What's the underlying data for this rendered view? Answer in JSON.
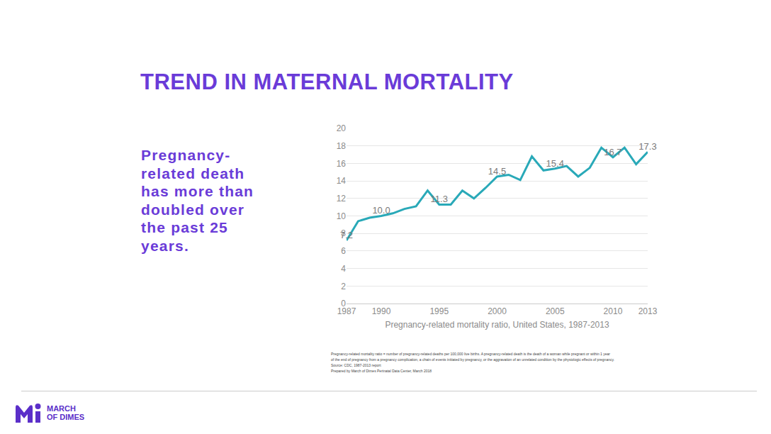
{
  "chart_data": {
    "type": "line",
    "title": "TREND IN MATERNAL MORTALITY",
    "xlabel": "Pregnancy-related mortality ratio, United States, 1987-2013",
    "x": [
      1987,
      1988,
      1989,
      1990,
      1991,
      1992,
      1993,
      1994,
      1995,
      1996,
      1997,
      1998,
      1999,
      2000,
      2001,
      2002,
      2003,
      2004,
      2005,
      2006,
      2007,
      2008,
      2009,
      2010,
      2011,
      2012,
      2013
    ],
    "values": [
      7.2,
      9.4,
      9.8,
      10.0,
      10.3,
      10.8,
      11.1,
      12.9,
      11.3,
      11.3,
      12.9,
      12.0,
      13.2,
      14.5,
      14.7,
      14.1,
      16.8,
      15.2,
      15.4,
      15.7,
      14.5,
      15.5,
      17.8,
      16.7,
      17.8,
      15.9,
      17.3
    ],
    "value_labels": [
      "7.2",
      null,
      null,
      "10.0",
      null,
      null,
      null,
      null,
      "11.3",
      null,
      null,
      null,
      null,
      "14.5",
      null,
      null,
      null,
      null,
      "15.4",
      null,
      null,
      null,
      null,
      "16.7",
      null,
      null,
      "17.3"
    ],
    "data_labels": true,
    "color": "#29a9b8",
    "xlim": [
      1987,
      2013
    ],
    "xticks": [
      1987,
      1990,
      1995,
      2000,
      2005,
      2010,
      2013
    ],
    "ylim": [
      0,
      20
    ],
    "yticks": [
      0,
      2,
      4,
      6,
      8,
      10,
      12,
      14,
      16,
      18,
      20
    ],
    "grid": true
  },
  "slide": {
    "body": [
      "Pregnancy-",
      "related death",
      "has more than",
      "doubled over",
      "the past 25",
      "years."
    ],
    "footnote": [
      "Pregnancy-related mortality ratio = number of pregnancy-related deaths per 100,000 live births. A pregnancy-related death is the death of a woman while pregnant or within 1 year",
      "of the end of pregnancy from a pregnancy complication, a chain of events initiated by pregnancy, or the aggravation of an unrelated condition by the physiologic effects of pregnancy.",
      "Source: CDC, 1987-2013 report",
      "Prepared by March of Dimes Perinatal Data Center, March 2018"
    ],
    "logo": [
      "MARCH",
      "OF DIMES"
    ]
  }
}
